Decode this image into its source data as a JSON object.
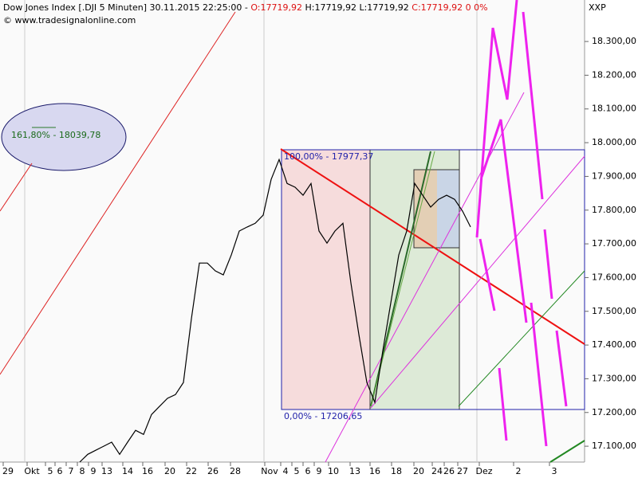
{
  "chart_data": {
    "type": "line",
    "header": {
      "instrument": "Dow Jones Index [.DJI  5 Minuten] 30.11.2015 22:25:00 -",
      "open": "O:17719,92",
      "high_low": "H:17719,92 L:17719,92",
      "close": "C:17719,92 0 0%"
    },
    "copyright": "© www.tradesignalonline.com",
    "axis_title": "XXP",
    "annotations": [
      "161,80% - 18039,78",
      "100,00% - 17977,37",
      "0,00% - 17206,65"
    ],
    "x_axis_labels": [
      "29",
      "Okt",
      "5",
      "6",
      "7",
      "8",
      "9",
      "13",
      "14",
      "16",
      "20",
      "22",
      "26",
      "28",
      "Nov",
      "4",
      "5",
      "6",
      "9",
      "10",
      "13",
      "16",
      "18",
      "20",
      "24",
      "26",
      "27",
      "Dez",
      "2",
      "3"
    ],
    "series": [
      {
        "name": "Dow Jones Index",
        "color": "#000000",
        "values": [
          17053,
          17076,
          17088,
          17100,
          17112,
          17076,
          17112,
          17147,
          17135,
          17194,
          17218,
          17242,
          17253,
          17289,
          17478,
          17643,
          17643,
          17620,
          17608,
          17667,
          17738,
          17750,
          17761,
          17785,
          17891,
          17950,
          17879,
          17868,
          17844,
          17879,
          17738,
          17702,
          17738,
          17761,
          17584,
          17431,
          17289,
          17230,
          17383,
          17525,
          17667,
          17738,
          17879,
          17844,
          17809,
          17832,
          17844,
          17832,
          17797,
          17750
        ]
      }
    ],
    "ylim": [
      17053,
      18423
    ],
    "yticks": [
      {
        "value": 17100,
        "label": "17.100,00"
      },
      {
        "value": 17200,
        "label": "17.200,00"
      },
      {
        "value": 17300,
        "label": "17.300,00"
      },
      {
        "value": 17400,
        "label": "17.400,00"
      },
      {
        "value": 17500,
        "label": "17.500,00"
      },
      {
        "value": 17600,
        "label": "17.600,00"
      },
      {
        "value": 17700,
        "label": "17.700,00"
      },
      {
        "value": 17800,
        "label": "17.800,00"
      },
      {
        "value": 17900,
        "label": "17.900,00"
      },
      {
        "value": 18000,
        "label": "18.000,00"
      },
      {
        "value": 18100,
        "label": "18.100,00"
      },
      {
        "value": 18200,
        "label": "18.200,00"
      },
      {
        "value": 18300,
        "label": "18.300,00"
      }
    ]
  }
}
